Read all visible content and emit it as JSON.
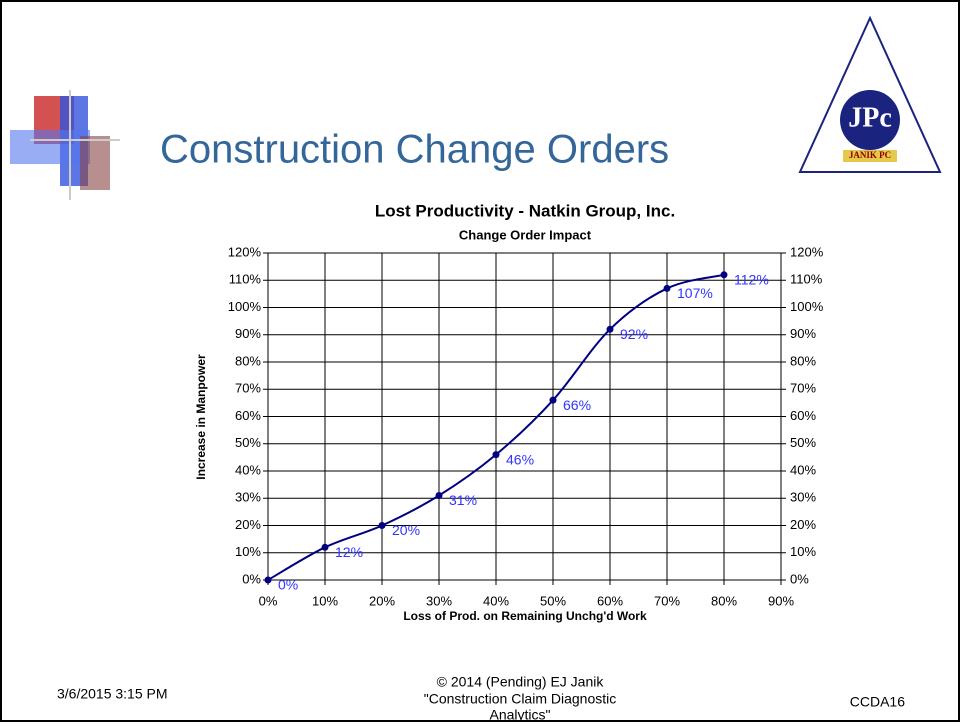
{
  "slide": {
    "title": "Construction Change Orders",
    "logo": {
      "letters": "JPc",
      "name": "JANIK PC"
    },
    "footer": {
      "copyright": "© 2014 (Pending) EJ Janik",
      "work_line1": "\"Construction Claim Diagnostic",
      "work_line2": "Analytics\"",
      "date": "3/6/2015 3:15 PM",
      "slide_id": "CCDA16"
    }
  },
  "chart_data": {
    "type": "line",
    "title": "Lost Productivity - Natkin Group, Inc.",
    "subtitle": "Change Order Impact",
    "x_label": "Loss of Prod. on Remaining Unchg'd Work",
    "y_label": "Increase in Manpower",
    "x": [
      0,
      10,
      20,
      30,
      40,
      50,
      60,
      70,
      80
    ],
    "series": [
      {
        "name": "Increase in Manpower",
        "color": "#000080",
        "values": [
          0,
          12,
          20,
          31,
          46,
          66,
          92,
          107,
          112
        ],
        "value_labels": [
          "0%",
          "12%",
          "20%",
          "31%",
          "46%",
          "66%",
          "92%",
          "107%",
          "112%"
        ]
      }
    ],
    "label_color": "#3333ff",
    "xlim": [
      0,
      90
    ],
    "xticks": [
      {
        "value": 0,
        "label": "0%"
      },
      {
        "value": 10,
        "label": "10%"
      },
      {
        "value": 20,
        "label": "20%"
      },
      {
        "value": 30,
        "label": "30%"
      },
      {
        "value": 40,
        "label": "40%"
      },
      {
        "value": 50,
        "label": "50%"
      },
      {
        "value": 60,
        "label": "60%"
      },
      {
        "value": 70,
        "label": "70%"
      },
      {
        "value": 80,
        "label": "80%"
      },
      {
        "value": 90,
        "label": "90%"
      }
    ],
    "ylim": [
      0,
      120
    ],
    "yticks": [
      {
        "value": 0,
        "label": "0%"
      },
      {
        "value": 10,
        "label": "10%"
      },
      {
        "value": 20,
        "label": "20%"
      },
      {
        "value": 30,
        "label": "30%"
      },
      {
        "value": 40,
        "label": "40%"
      },
      {
        "value": 50,
        "label": "50%"
      },
      {
        "value": 60,
        "label": "60%"
      },
      {
        "value": 70,
        "label": "70%"
      },
      {
        "value": 80,
        "label": "80%"
      },
      {
        "value": 90,
        "label": "90%"
      },
      {
        "value": 100,
        "label": "100%"
      },
      {
        "value": 110,
        "label": "110%"
      },
      {
        "value": 120,
        "label": "120%"
      }
    ],
    "y2lim": [
      0,
      120
    ],
    "y2ticks": [
      {
        "value": 0,
        "label": "0%"
      },
      {
        "value": 10,
        "label": "10%"
      },
      {
        "value": 20,
        "label": "20%"
      },
      {
        "value": 30,
        "label": "30%"
      },
      {
        "value": 40,
        "label": "40%"
      },
      {
        "value": 50,
        "label": "50%"
      },
      {
        "value": 60,
        "label": "60%"
      },
      {
        "value": 70,
        "label": "70%"
      },
      {
        "value": 80,
        "label": "80%"
      },
      {
        "value": 90,
        "label": "90%"
      },
      {
        "value": 100,
        "label": "100%"
      },
      {
        "value": 110,
        "label": "110%"
      },
      {
        "value": 120,
        "label": "120%"
      }
    ],
    "grid": true,
    "smooth": true
  }
}
